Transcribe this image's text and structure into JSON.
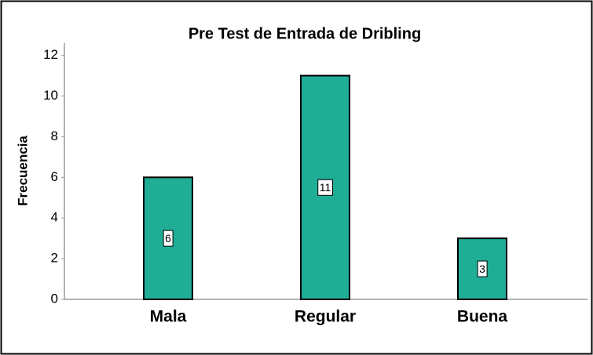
{
  "chart_data": {
    "type": "bar",
    "title": "Pre Test de Entrada de Dribling",
    "y_label": "Frecuencia",
    "categories": [
      "Mala",
      "Regular",
      "Buena"
    ],
    "values": [
      6,
      11,
      3
    ],
    "color": "#1fad96",
    "ylim": [
      0,
      12.6
    ],
    "yticks": [
      0,
      2,
      4,
      6,
      8,
      10,
      12
    ],
    "grid": false
  }
}
